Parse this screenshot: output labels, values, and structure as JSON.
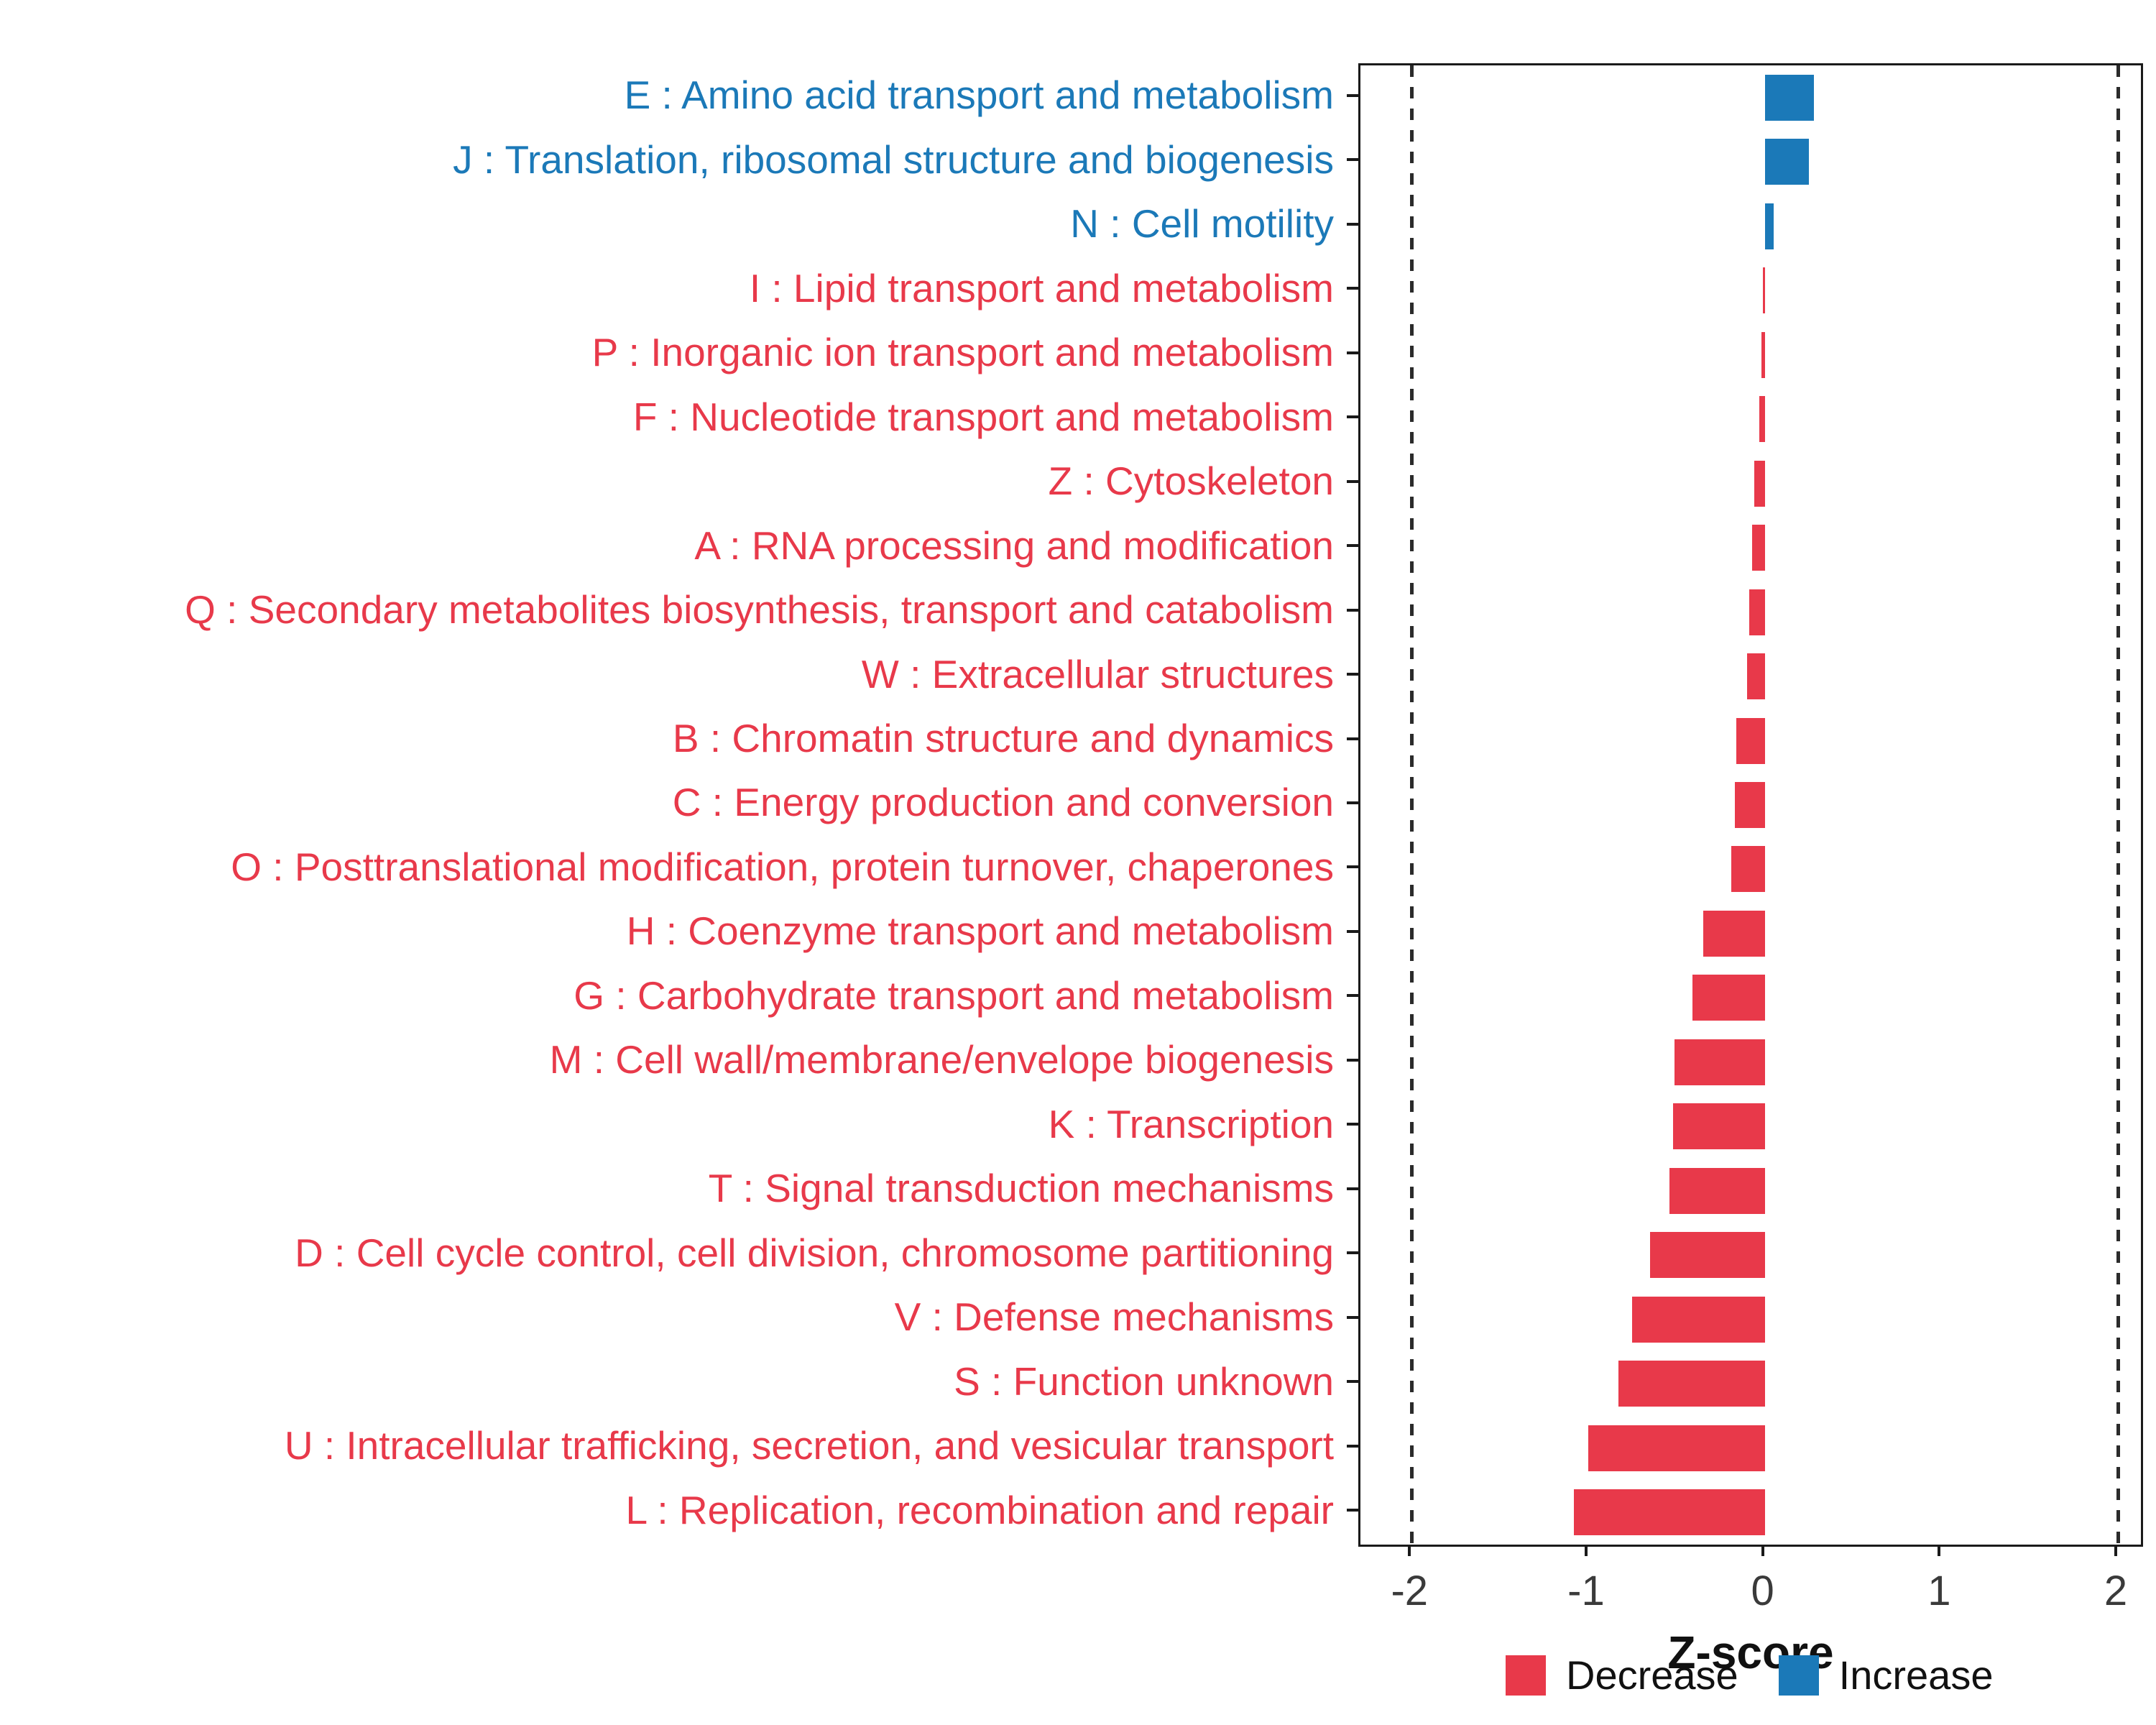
{
  "chart_data": {
    "type": "bar",
    "orientation": "horizontal",
    "title": "",
    "xlabel": "Z-score",
    "xlim": [
      -2.29,
      2.13
    ],
    "x_ticks": [
      -2,
      -1,
      0,
      1,
      2
    ],
    "guide_lines_dashed": [
      -2,
      2
    ],
    "grid": "off",
    "bar_colors": {
      "Decrease": "#E8394A",
      "Increase": "#1B79B8"
    },
    "label_colors": {
      "Decrease": "#E8394A",
      "Increase": "#1B79B8"
    },
    "legend": {
      "position": "bottom-right",
      "items": [
        {
          "label": "Decrease",
          "group": "Decrease"
        },
        {
          "label": "Increase",
          "group": "Increase"
        }
      ]
    },
    "categories": [
      {
        "label": "E : Amino acid transport and metabolism",
        "value": 0.28,
        "group": "Increase"
      },
      {
        "label": "J : Translation, ribosomal structure and biogenesis",
        "value": 0.25,
        "group": "Increase"
      },
      {
        "label": "N : Cell motility",
        "value": 0.05,
        "group": "Increase"
      },
      {
        "label": "I : Lipid transport and metabolism",
        "value": -0.01,
        "group": "Decrease"
      },
      {
        "label": "P : Inorganic ion transport and metabolism",
        "value": -0.02,
        "group": "Decrease"
      },
      {
        "label": "F : Nucleotide transport and metabolism",
        "value": -0.03,
        "group": "Decrease"
      },
      {
        "label": "Z : Cytoskeleton",
        "value": -0.06,
        "group": "Decrease"
      },
      {
        "label": "A : RNA processing and modification",
        "value": -0.07,
        "group": "Decrease"
      },
      {
        "label": "Q : Secondary metabolites biosynthesis, transport and catabolism",
        "value": -0.09,
        "group": "Decrease"
      },
      {
        "label": "W : Extracellular structures",
        "value": -0.1,
        "group": "Decrease"
      },
      {
        "label": "B : Chromatin structure and dynamics",
        "value": -0.16,
        "group": "Decrease"
      },
      {
        "label": "C : Energy production and conversion",
        "value": -0.17,
        "group": "Decrease"
      },
      {
        "label": "O : Posttranslational modification, protein turnover, chaperones",
        "value": -0.19,
        "group": "Decrease"
      },
      {
        "label": "H : Coenzyme transport and metabolism",
        "value": -0.35,
        "group": "Decrease"
      },
      {
        "label": "G : Carbohydrate transport and metabolism",
        "value": -0.41,
        "group": "Decrease"
      },
      {
        "label": "M : Cell wall/membrane/envelope biogenesis",
        "value": -0.51,
        "group": "Decrease"
      },
      {
        "label": "K : Transcription",
        "value": -0.52,
        "group": "Decrease"
      },
      {
        "label": "T : Signal transduction mechanisms",
        "value": -0.54,
        "group": "Decrease"
      },
      {
        "label": "D : Cell cycle control, cell division, chromosome partitioning",
        "value": -0.65,
        "group": "Decrease"
      },
      {
        "label": "V : Defense mechanisms",
        "value": -0.75,
        "group": "Decrease"
      },
      {
        "label": "S : Function unknown",
        "value": -0.83,
        "group": "Decrease"
      },
      {
        "label": "U : Intracellular trafficking, secretion, and vesicular transport",
        "value": -1.0,
        "group": "Decrease"
      },
      {
        "label": "L : Replication, recombination and repair",
        "value": -1.08,
        "group": "Decrease"
      }
    ]
  }
}
